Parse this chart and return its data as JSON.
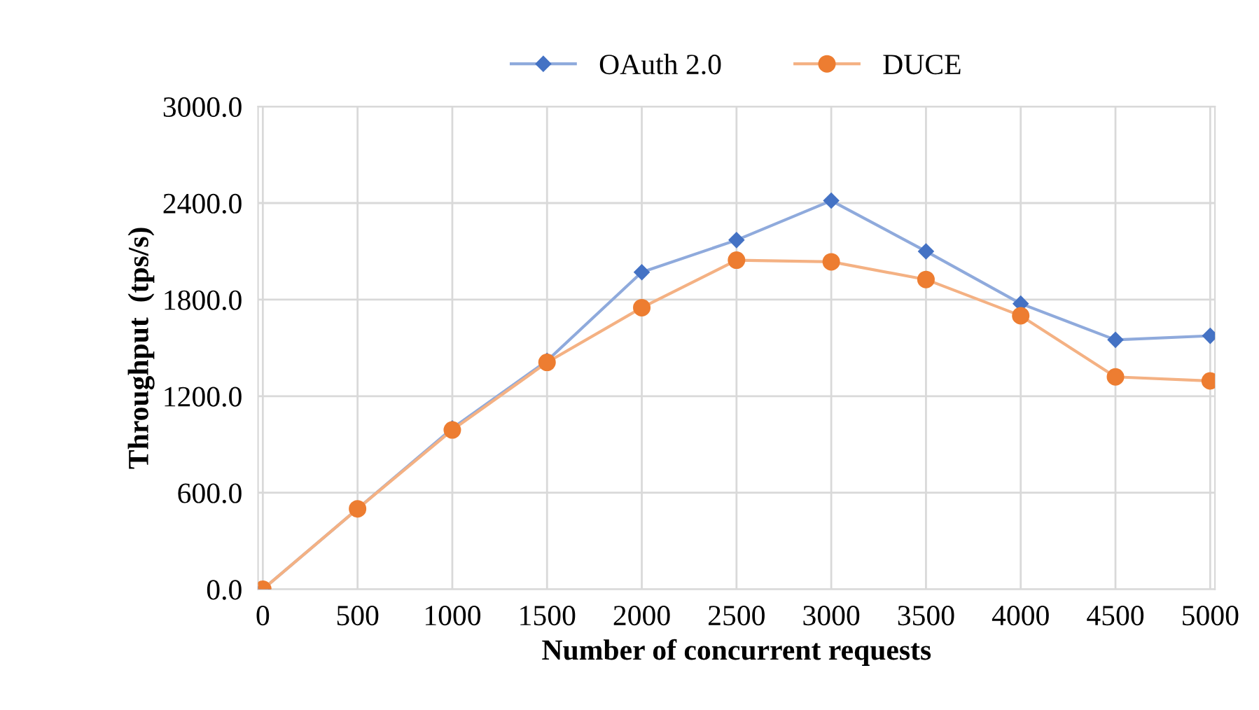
{
  "chart_data": {
    "type": "line",
    "xlabel": "Number of concurrent requests",
    "ylabel": "Throughput  (tps/s)",
    "categories": [
      "0",
      "500",
      "1000",
      "1500",
      "2000",
      "2500",
      "3000",
      "3500",
      "4000",
      "4500",
      "5000"
    ],
    "series": [
      {
        "name": "OAuth 2.0",
        "color": "#4472c4",
        "marker": "diamond",
        "values": [
          0,
          500,
          1000,
          1420,
          1970,
          2170,
          2415,
          2100,
          1775,
          1550,
          1575
        ]
      },
      {
        "name": "DUCE",
        "color": "#ed7d31",
        "marker": "circle",
        "values": [
          0,
          500,
          990,
          1410,
          1750,
          2045,
          2035,
          1925,
          1700,
          1320,
          1295
        ]
      }
    ],
    "ylim": [
      0,
      3000
    ],
    "yticks": [
      {
        "value": 0,
        "label": "0.0"
      },
      {
        "value": 600,
        "label": "600.0"
      },
      {
        "value": 1200,
        "label": "1200.0"
      },
      {
        "value": 1800,
        "label": "1800.0"
      },
      {
        "value": 2400,
        "label": "2400.0"
      },
      {
        "value": 3000,
        "label": "3000.0"
      }
    ],
    "grid": true,
    "legend": "top",
    "line_style": "solid"
  }
}
